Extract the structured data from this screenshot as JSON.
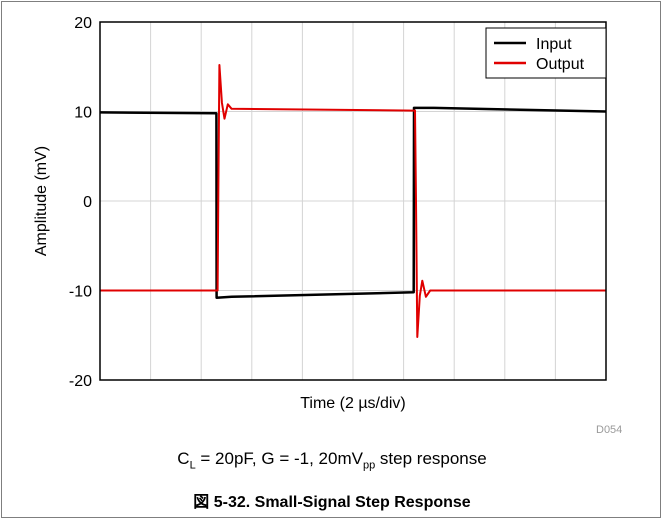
{
  "chart_data": {
    "type": "line",
    "title": "",
    "xlabel": "Time (2 µs/div)",
    "ylabel": "Amplitude (mV)",
    "xlim": [
      0,
      20
    ],
    "ylim": [
      -20,
      20
    ],
    "yticks": [
      "20",
      "10",
      "0",
      "-10",
      "-20"
    ],
    "ytick_values": [
      20,
      10,
      0,
      -10,
      -20
    ],
    "x_divisions": 10,
    "grid": true,
    "legend_position": "top-right",
    "series": [
      {
        "name": "Input",
        "color": "#000000",
        "points": [
          [
            0,
            9.9
          ],
          [
            4.6,
            9.8
          ],
          [
            4.61,
            -10.8
          ],
          [
            5.2,
            -10.7
          ],
          [
            12.4,
            -10.2
          ],
          [
            12.41,
            10.4
          ],
          [
            13.2,
            10.4
          ],
          [
            20,
            10.0
          ]
        ]
      },
      {
        "name": "Output",
        "color": "#e00000",
        "points": [
          [
            0,
            -10.0
          ],
          [
            4.65,
            -10.0
          ],
          [
            4.68,
            2.0
          ],
          [
            4.72,
            15.2
          ],
          [
            4.82,
            11.0
          ],
          [
            4.92,
            9.2
          ],
          [
            5.05,
            10.8
          ],
          [
            5.2,
            10.3
          ],
          [
            12.45,
            10.1
          ],
          [
            12.49,
            0.0
          ],
          [
            12.54,
            -15.2
          ],
          [
            12.64,
            -10.6
          ],
          [
            12.74,
            -8.9
          ],
          [
            12.88,
            -10.7
          ],
          [
            13.05,
            -10.0
          ],
          [
            20,
            -10.0
          ]
        ]
      }
    ]
  },
  "figure_code": "D054",
  "condition": {
    "c_prefix": "C",
    "c_sub": "L",
    "middle": " = 20pF, G = -1, 20mV",
    "pp_sub": "pp",
    "suffix": " step response"
  },
  "caption": "図 5-32. Small-Signal Step Response"
}
